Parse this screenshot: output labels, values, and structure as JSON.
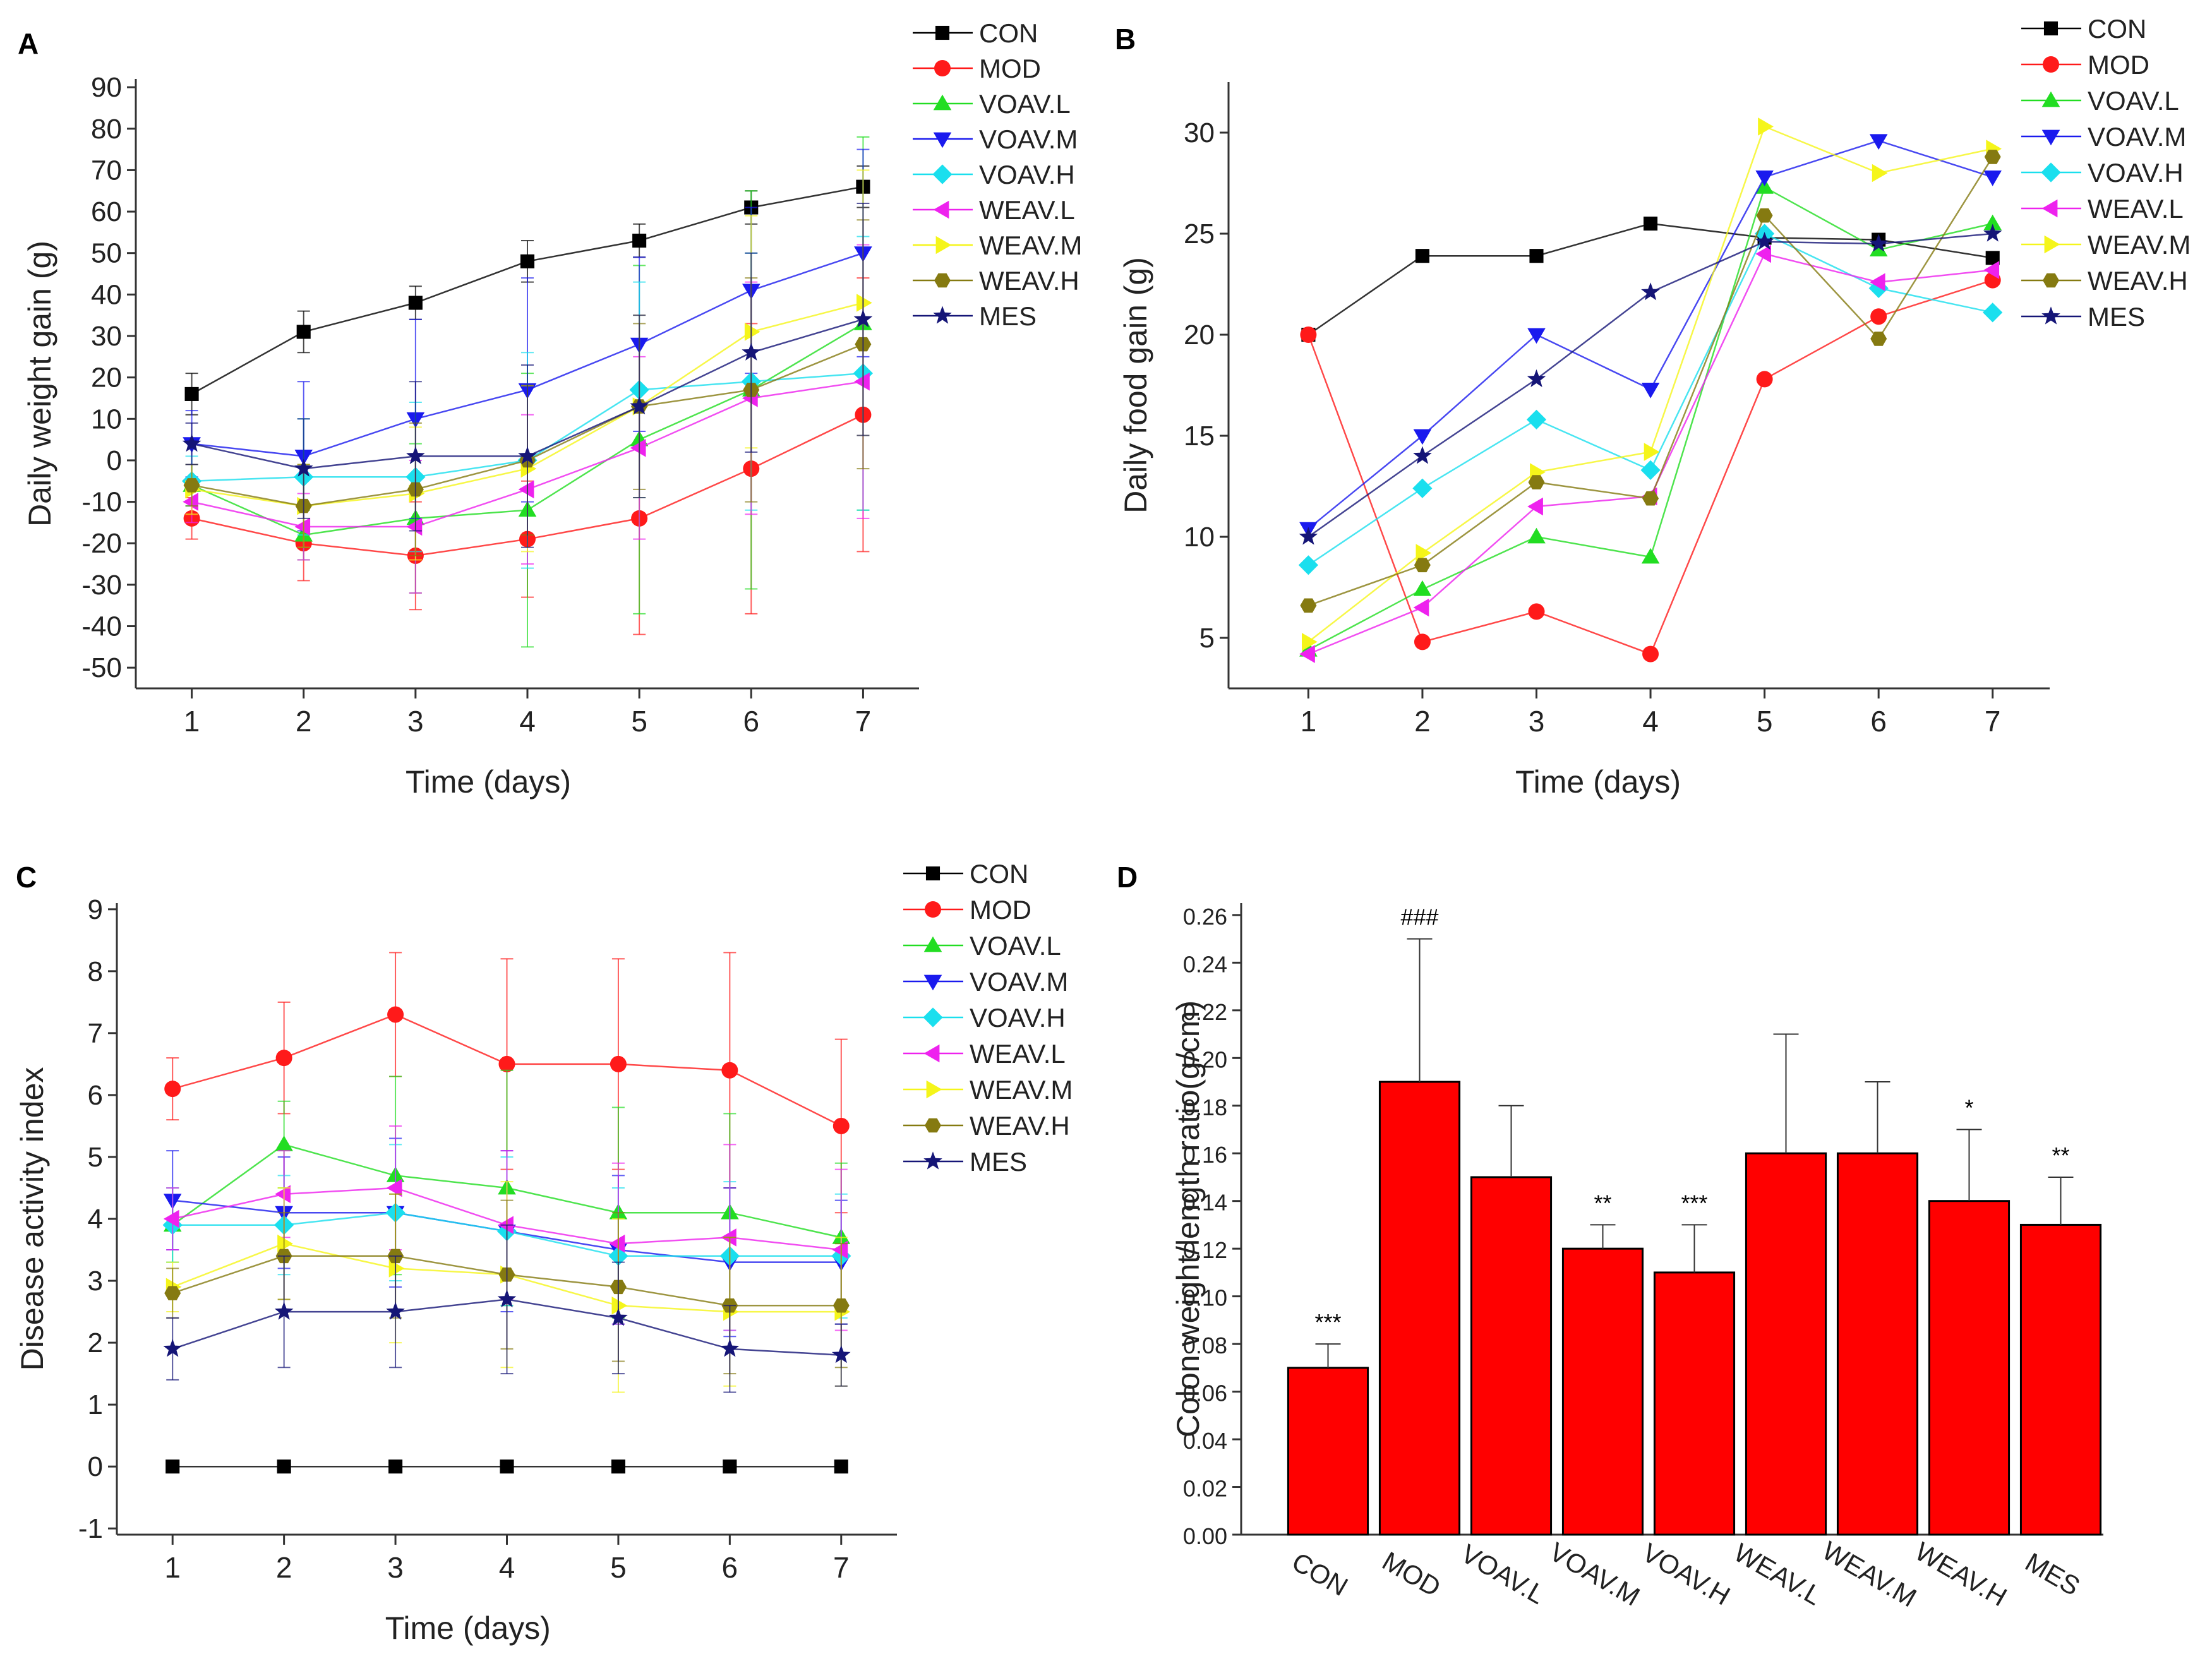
{
  "series_colors": {
    "CON": "#000000",
    "MOD": "#ff1a1a",
    "VOAV.L": "#22dd22",
    "VOAV.M": "#1a1aee",
    "VOAV.H": "#1adfee",
    "WEAV.L": "#ee22ee",
    "WEAV.M": "#f5f51a",
    "WEAV.H": "#857a11",
    "MES": "#151577"
  },
  "series_markers": {
    "CON": "square",
    "MOD": "circle",
    "VOAV.L": "triangle-up",
    "VOAV.M": "triangle-down",
    "VOAV.H": "diamond",
    "WEAV.L": "triangle-left",
    "WEAV.M": "triangle-right",
    "WEAV.H": "hexagon",
    "MES": "star"
  },
  "bar_color": "#ff0000",
  "chart_data": [
    {
      "panel": "A",
      "type": "line",
      "title": "",
      "xlabel": "Time (days)",
      "ylabel": "Daily weight gain (g)",
      "x": [
        1,
        2,
        3,
        4,
        5,
        6,
        7
      ],
      "xlim": [
        0.5,
        7.5
      ],
      "ylim": [
        -55,
        92
      ],
      "yticks": [
        -50,
        -40,
        -30,
        -20,
        -10,
        0,
        10,
        20,
        30,
        40,
        50,
        60,
        70,
        80,
        90
      ],
      "legend_position": "right",
      "series": [
        {
          "name": "CON",
          "values": [
            16,
            31,
            38,
            48,
            53,
            61,
            66
          ],
          "errors": [
            5,
            5,
            4,
            5,
            4,
            4,
            5
          ]
        },
        {
          "name": "MOD",
          "values": [
            -14,
            -20,
            -23,
            -19,
            -14,
            -2,
            11
          ],
          "errors": [
            5,
            9,
            13,
            14,
            28,
            35,
            33
          ]
        },
        {
          "name": "VOAV.L",
          "values": [
            -6,
            -18,
            -14,
            -12,
            5,
            17,
            33
          ],
          "errors": [
            5,
            6,
            18,
            33,
            42,
            48,
            45
          ]
        },
        {
          "name": "VOAV.M",
          "values": [
            4,
            1,
            10,
            17,
            28,
            41,
            50
          ],
          "errors": [
            8,
            18,
            24,
            27,
            21,
            20,
            25
          ]
        },
        {
          "name": "VOAV.H",
          "values": [
            -5,
            -4,
            -4,
            0,
            17,
            19,
            21
          ],
          "errors": [
            6,
            14,
            18,
            26,
            26,
            31,
            33
          ]
        },
        {
          "name": "WEAV.L",
          "values": [
            -10,
            -16,
            -16,
            -7,
            3,
            15,
            19
          ],
          "errors": [
            5,
            8,
            16,
            18,
            22,
            28,
            33
          ]
        },
        {
          "name": "WEAV.M",
          "values": [
            -7,
            -11,
            -8,
            -2,
            13,
            31,
            38
          ],
          "errors": [
            6,
            10,
            16,
            20,
            22,
            28,
            32
          ]
        },
        {
          "name": "WEAV.H",
          "values": [
            -6,
            -11,
            -7,
            0,
            13,
            17,
            28
          ],
          "errors": [
            5,
            10,
            16,
            18,
            20,
            27,
            30
          ]
        },
        {
          "name": "MES",
          "values": [
            4,
            -2,
            1,
            1,
            13,
            26,
            34
          ],
          "errors": [
            5,
            12,
            18,
            22,
            22,
            24,
            28
          ]
        }
      ]
    },
    {
      "panel": "B",
      "type": "line",
      "title": "",
      "xlabel": "Time (days)",
      "ylabel": "Daily food gain (g)",
      "x": [
        1,
        2,
        3,
        4,
        5,
        6,
        7
      ],
      "xlim": [
        0.3,
        7.5
      ],
      "ylim": [
        2.5,
        32.5
      ],
      "yticks": [
        5,
        10,
        15,
        20,
        25,
        30
      ],
      "legend_position": "right",
      "series": [
        {
          "name": "CON",
          "values": [
            20,
            23.9,
            23.9,
            25.5,
            24.8,
            24.7,
            23.8
          ]
        },
        {
          "name": "MOD",
          "values": [
            20,
            4.8,
            6.3,
            4.2,
            17.8,
            20.9,
            22.7
          ]
        },
        {
          "name": "VOAV.L",
          "values": [
            4.4,
            7.4,
            10,
            9,
            27.3,
            24.2,
            25.5
          ]
        },
        {
          "name": "VOAV.M",
          "values": [
            10.4,
            15,
            20,
            17.3,
            27.8,
            29.6,
            27.8
          ]
        },
        {
          "name": "VOAV.H",
          "values": [
            8.6,
            12.4,
            15.8,
            13.3,
            25,
            22.3,
            21.1
          ]
        },
        {
          "name": "WEAV.L",
          "values": [
            4.2,
            6.5,
            11.5,
            12,
            24,
            22.6,
            23.2
          ]
        },
        {
          "name": "WEAV.M",
          "values": [
            4.8,
            9.2,
            13.2,
            14.2,
            30.3,
            28,
            29.2
          ]
        },
        {
          "name": "WEAV.H",
          "values": [
            6.6,
            8.6,
            12.7,
            11.9,
            25.9,
            19.8,
            28.8
          ]
        },
        {
          "name": "MES",
          "values": [
            10,
            14,
            17.8,
            22.1,
            24.6,
            24.5,
            25
          ]
        }
      ]
    },
    {
      "panel": "C",
      "type": "line",
      "title": "",
      "xlabel": "Time (days)",
      "ylabel": "Disease activity index",
      "x": [
        1,
        2,
        3,
        4,
        5,
        6,
        7
      ],
      "xlim": [
        0.5,
        7.5
      ],
      "ylim": [
        -1.1,
        9.1
      ],
      "yticks": [
        -1,
        0,
        1,
        2,
        3,
        4,
        5,
        6,
        7,
        8,
        9
      ],
      "legend_position": "right",
      "series": [
        {
          "name": "CON",
          "values": [
            0,
            0,
            0,
            0,
            0,
            0,
            0
          ],
          "errors": [
            0,
            0,
            0,
            0,
            0,
            0,
            0
          ]
        },
        {
          "name": "MOD",
          "values": [
            6.1,
            6.6,
            7.3,
            6.5,
            6.5,
            6.4,
            5.5
          ],
          "errors": [
            0.5,
            0.9,
            1,
            1.7,
            1.7,
            1.9,
            1.4
          ]
        },
        {
          "name": "VOAV.L",
          "values": [
            3.9,
            5.2,
            4.7,
            4.5,
            4.1,
            4.1,
            3.7
          ],
          "errors": [
            0.6,
            0.7,
            1.6,
            1.9,
            1.7,
            1.6,
            1.2
          ]
        },
        {
          "name": "VOAV.M",
          "values": [
            4.3,
            4.1,
            4.1,
            3.8,
            3.5,
            3.3,
            3.3
          ],
          "errors": [
            0.8,
            0.9,
            1.2,
            1.3,
            1.2,
            1.2,
            1
          ]
        },
        {
          "name": "VOAV.H",
          "values": [
            3.9,
            3.9,
            4.1,
            3.8,
            3.4,
            3.4,
            3.4
          ],
          "errors": [
            0.6,
            0.8,
            1.1,
            1.2,
            1.1,
            1.2,
            1
          ]
        },
        {
          "name": "WEAV.L",
          "values": [
            4,
            4.4,
            4.5,
            3.9,
            3.6,
            3.7,
            3.5
          ],
          "errors": [
            0.5,
            0.7,
            1,
            1.2,
            1.3,
            1.5,
            1.3
          ]
        },
        {
          "name": "WEAV.M",
          "values": [
            2.9,
            3.6,
            3.2,
            3.1,
            2.6,
            2.5,
            2.5
          ],
          "errors": [
            0.4,
            0.9,
            1.2,
            1.5,
            1.4,
            1.2,
            1.2
          ]
        },
        {
          "name": "WEAV.H",
          "values": [
            2.8,
            3.4,
            3.4,
            3.1,
            2.9,
            2.6,
            2.6
          ],
          "errors": [
            0.4,
            0.7,
            1,
            1.2,
            1.2,
            1.1,
            1
          ]
        },
        {
          "name": "MES",
          "values": [
            1.9,
            2.5,
            2.5,
            2.7,
            2.4,
            1.9,
            1.8
          ],
          "errors": [
            0.5,
            0.9,
            0.9,
            1.2,
            0.9,
            0.7,
            0.5
          ]
        }
      ]
    },
    {
      "panel": "D",
      "type": "bar",
      "title": "",
      "xlabel": "",
      "ylabel": "Colon weight/length ratio(g/cm)",
      "categories": [
        "CON",
        "MOD",
        "VOAV.L",
        "VOAV.M",
        "VOAV.H",
        "WEAV.L",
        "WEAV.M",
        "WEAV.H",
        "MES"
      ],
      "values": [
        0.07,
        0.19,
        0.15,
        0.12,
        0.11,
        0.16,
        0.16,
        0.14,
        0.13
      ],
      "errors": [
        0.01,
        0.06,
        0.03,
        0.01,
        0.02,
        0.05,
        0.03,
        0.03,
        0.02
      ],
      "significance": [
        "***",
        "###",
        "",
        "**",
        "***",
        "",
        "",
        "*",
        "**"
      ],
      "ylim": [
        0,
        0.265
      ],
      "yticks": [
        "0.00",
        "0.02",
        "0.04",
        "0.06",
        "0.08",
        "0.10",
        "0.12",
        "0.14",
        "0.16",
        "0.18",
        "0.20",
        "0.22",
        "0.24",
        "0.26"
      ]
    }
  ]
}
